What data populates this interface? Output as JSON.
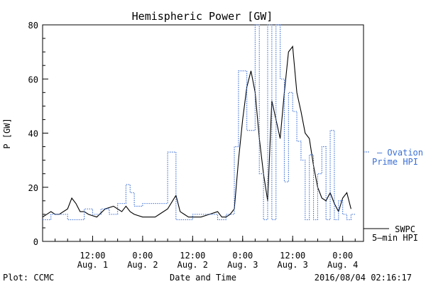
{
  "chart_data": {
    "type": "line",
    "title": "Hemispheric Power [GW]",
    "xlabel": "Date and Time",
    "ylabel": "P [GW]",
    "ylim": [
      0,
      80
    ],
    "yticks": [
      0,
      20,
      40,
      60,
      80
    ],
    "xlim": [
      "2016-08-01 00:00",
      "2016-08-04 05:00"
    ],
    "xticks": [
      {
        "time": "2016-08-01 12:00",
        "line1": "12:00",
        "line2": "Aug. 1"
      },
      {
        "time": "2016-08-02 00:00",
        "line1": "0:00",
        "line2": "Aug. 2"
      },
      {
        "time": "2016-08-02 12:00",
        "line1": "12:00",
        "line2": "Aug. 2"
      },
      {
        "time": "2016-08-03 00:00",
        "line1": "0:00",
        "line2": "Aug. 3"
      },
      {
        "time": "2016-08-03 12:00",
        "line1": "12:00",
        "line2": "Aug. 3"
      },
      {
        "time": "2016-08-04 00:00",
        "line1": "0:00",
        "line2": "Aug. 4"
      }
    ],
    "grid": false,
    "legend_position": "right",
    "series": [
      {
        "name": "SWPC 5-min HPI",
        "legend_lines": [
          "SWPC",
          "5—min HPI"
        ],
        "color": "#000000",
        "style": "solid",
        "x": [
          "2016-08-01 00:00",
          "2016-08-01 02:00",
          "2016-08-01 03:00",
          "2016-08-01 04:00",
          "2016-08-01 06:00",
          "2016-08-01 07:00",
          "2016-08-01 08:00",
          "2016-08-01 09:00",
          "2016-08-01 10:00",
          "2016-08-01 11:00",
          "2016-08-01 13:00",
          "2016-08-01 15:00",
          "2016-08-01 17:00",
          "2016-08-01 18:00",
          "2016-08-01 19:00",
          "2016-08-01 20:00",
          "2016-08-01 21:00",
          "2016-08-01 22:00",
          "2016-08-02 00:00",
          "2016-08-02 01:00",
          "2016-08-02 03:00",
          "2016-08-02 04:00",
          "2016-08-02 06:00",
          "2016-08-02 08:00",
          "2016-08-02 09:00",
          "2016-08-02 10:00",
          "2016-08-02 11:00",
          "2016-08-02 12:00",
          "2016-08-02 14:00",
          "2016-08-02 16:00",
          "2016-08-02 18:00",
          "2016-08-02 19:00",
          "2016-08-02 20:00",
          "2016-08-02 21:00",
          "2016-08-02 22:00",
          "2016-08-02 23:00",
          "2016-08-03 00:00",
          "2016-08-03 01:00",
          "2016-08-03 02:00",
          "2016-08-03 03:00",
          "2016-08-03 04:00",
          "2016-08-03 05:00",
          "2016-08-03 06:00",
          "2016-08-03 07:00",
          "2016-08-03 08:00",
          "2016-08-03 09:00",
          "2016-08-03 10:00",
          "2016-08-03 11:00",
          "2016-08-03 12:00",
          "2016-08-03 13:00",
          "2016-08-03 14:00",
          "2016-08-03 15:00",
          "2016-08-03 16:00",
          "2016-08-03 17:00",
          "2016-08-03 18:00",
          "2016-08-03 19:00",
          "2016-08-03 20:00",
          "2016-08-03 21:00",
          "2016-08-03 22:00",
          "2016-08-03 23:00",
          "2016-08-04 00:00",
          "2016-08-04 01:00",
          "2016-08-04 02:00"
        ],
        "y": [
          9,
          11,
          10,
          10,
          12,
          16,
          14,
          11,
          11,
          10,
          9,
          12,
          13,
          12,
          11,
          13,
          11,
          10,
          9,
          9,
          9,
          10,
          12,
          17,
          11,
          10,
          9,
          9,
          9,
          10,
          11,
          9,
          9,
          10,
          12,
          30,
          45,
          57,
          63,
          55,
          38,
          25,
          15,
          52,
          45,
          38,
          55,
          70,
          72,
          55,
          48,
          40,
          38,
          28,
          20,
          16,
          15,
          18,
          14,
          11,
          16,
          18,
          12
        ]
      },
      {
        "name": "Ovation Prime HPI",
        "legend_lines": [
          "— Ovation",
          "Prime HPI"
        ],
        "color": "#3a6fd6",
        "style": "dotted",
        "x": [
          "2016-08-01 00:00",
          "2016-08-01 02:00",
          "2016-08-01 04:00",
          "2016-08-01 06:00",
          "2016-08-01 08:00",
          "2016-08-01 10:00",
          "2016-08-01 12:00",
          "2016-08-01 14:00",
          "2016-08-01 16:00",
          "2016-08-01 18:00",
          "2016-08-01 20:00",
          "2016-08-01 21:00",
          "2016-08-01 22:00",
          "2016-08-02 00:00",
          "2016-08-02 02:00",
          "2016-08-02 04:00",
          "2016-08-02 06:00",
          "2016-08-02 08:00",
          "2016-08-02 10:00",
          "2016-08-02 12:00",
          "2016-08-02 14:00",
          "2016-08-02 16:00",
          "2016-08-02 18:00",
          "2016-08-02 20:00",
          "2016-08-02 21:00",
          "2016-08-02 22:00",
          "2016-08-02 23:00",
          "2016-08-03 00:00",
          "2016-08-03 01:00",
          "2016-08-03 02:00",
          "2016-08-03 03:00",
          "2016-08-03 04:00",
          "2016-08-03 05:00",
          "2016-08-03 06:00",
          "2016-08-03 07:00",
          "2016-08-03 08:00",
          "2016-08-03 09:00",
          "2016-08-03 10:00",
          "2016-08-03 11:00",
          "2016-08-03 12:00",
          "2016-08-03 13:00",
          "2016-08-03 14:00",
          "2016-08-03 15:00",
          "2016-08-03 16:00",
          "2016-08-03 17:00",
          "2016-08-03 18:00",
          "2016-08-03 19:00",
          "2016-08-03 20:00",
          "2016-08-03 21:00",
          "2016-08-03 22:00",
          "2016-08-03 23:00",
          "2016-08-04 00:00",
          "2016-08-04 01:00",
          "2016-08-04 02:00"
        ],
        "y": [
          8,
          10,
          10,
          8,
          8,
          12,
          10,
          12,
          10,
          14,
          21,
          18,
          13,
          14,
          14,
          14,
          33,
          8,
          8,
          10,
          10,
          10,
          8,
          10,
          10,
          35,
          63,
          63,
          41,
          41,
          80,
          25,
          8,
          80,
          8,
          80,
          60,
          22,
          55,
          48,
          37,
          30,
          8,
          32,
          8,
          25,
          35,
          8,
          41,
          8,
          15,
          10,
          8,
          10
        ]
      }
    ]
  },
  "footer": {
    "plot_credit": "Plot: CCMC",
    "timestamp": "2016/08/04 02:16:17"
  }
}
